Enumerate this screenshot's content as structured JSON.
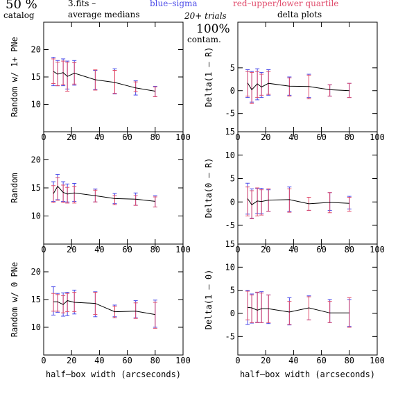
{
  "header": {
    "percent": "50 %",
    "catalog": "catalog",
    "fits": "3.fits  –",
    "average_medians": "average medians",
    "blue_sigma": "blue–sigma",
    "red_quartile": "red–upper/lower quartile",
    "trials": "20+ trials",
    "delta_plots": "delta plots",
    "contam_pct": "100%",
    "contam": "contam."
  },
  "colors": {
    "sigma": "#4a4ae8",
    "quartile": "#e04a6a",
    "median": "#000000"
  },
  "chart_data": [
    {
      "type": "line",
      "title": "",
      "xlabel": "",
      "ylabel": "Random w/ 1+ PNe",
      "xlim": [
        0,
        100
      ],
      "ylim": [
        5,
        25
      ],
      "xticks": [
        0,
        20,
        40,
        60,
        80,
        100
      ],
      "yticks": [
        10,
        15,
        20
      ],
      "x": [
        7,
        10,
        14,
        17,
        22,
        37,
        51,
        66,
        80
      ],
      "y": [
        16.0,
        15.5,
        15.8,
        15.1,
        15.7,
        14.5,
        14.0,
        13.0,
        12.4
      ],
      "sigma_low": [
        13.4,
        13.4,
        13.4,
        12.8,
        13.5,
        12.7,
        11.9,
        11.7,
        11.4
      ],
      "sigma_high": [
        18.6,
        18.0,
        18.3,
        17.9,
        18.0,
        16.2,
        16.5,
        14.3,
        13.3
      ],
      "quart_low": [
        13.8,
        13.4,
        13.6,
        12.4,
        13.7,
        12.6,
        12.0,
        12.3,
        11.4
      ],
      "quart_high": [
        18.3,
        17.7,
        17.9,
        17.7,
        17.6,
        16.3,
        16.2,
        14.1,
        13.2
      ]
    },
    {
      "type": "line",
      "title": "",
      "xlabel": "",
      "ylabel": "Delta(1 – R)",
      "xlim": [
        0,
        100
      ],
      "ylim": [
        -9,
        15
      ],
      "xticks": [
        0,
        20,
        40,
        60,
        80,
        100
      ],
      "yticks": [
        -5,
        0,
        5
      ],
      "x": [
        7,
        10,
        14,
        17,
        22,
        37,
        51,
        66,
        80
      ],
      "y": [
        1.7,
        0.2,
        1.5,
        0.8,
        1.6,
        1.0,
        0.9,
        0.2,
        0.0
      ],
      "sigma_low": [
        -1.5,
        -2.5,
        -2.0,
        -1.5,
        -1.0,
        -1.0,
        -1.5,
        -1.2,
        -1.5
      ],
      "sigma_high": [
        4.6,
        4.2,
        4.8,
        4.0,
        4.6,
        3.0,
        3.6,
        1.3,
        1.6
      ],
      "quart_low": [
        -1.2,
        -2.8,
        -1.5,
        -1.0,
        -0.8,
        -1.2,
        -1.8,
        -1.2,
        -1.5
      ],
      "quart_high": [
        4.2,
        4.0,
        4.2,
        3.6,
        4.2,
        2.8,
        3.4,
        1.3,
        1.6
      ]
    },
    {
      "type": "line",
      "title": "",
      "xlabel": "",
      "ylabel": "Random",
      "xlim": [
        0,
        100
      ],
      "ylim": [
        5,
        25
      ],
      "xticks": [
        0,
        20,
        40,
        60,
        80,
        100
      ],
      "yticks": [
        10,
        15,
        20
      ],
      "x": [
        7,
        10,
        14,
        17,
        22,
        37,
        51,
        66,
        80
      ],
      "y": [
        14.0,
        15.3,
        14.2,
        13.9,
        14.1,
        13.6,
        13.1,
        13.0,
        12.6
      ],
      "sigma_low": [
        12.6,
        12.9,
        12.6,
        12.5,
        12.6,
        12.5,
        12.2,
        11.9,
        11.6
      ],
      "sigma_high": [
        16.1,
        17.4,
        16.1,
        15.7,
        15.8,
        14.8,
        14.0,
        14.1,
        13.6
      ],
      "quart_low": [
        12.4,
        12.8,
        12.4,
        12.3,
        12.3,
        12.5,
        12.0,
        11.9,
        11.6
      ],
      "quart_high": [
        15.4,
        16.8,
        15.5,
        15.1,
        15.3,
        14.6,
        13.6,
        13.6,
        13.4
      ]
    },
    {
      "type": "line",
      "title": "",
      "xlabel": "",
      "ylabel": "Delta(0 – R)",
      "xlim": [
        0,
        100
      ],
      "ylim": [
        -9,
        15
      ],
      "xticks": [
        0,
        20,
        40,
        60,
        80,
        100
      ],
      "yticks": [
        -5,
        0,
        5,
        10,
        15
      ],
      "x": [
        7,
        10,
        14,
        17,
        22,
        37,
        51,
        66,
        80
      ],
      "y": [
        0.7,
        -0.6,
        0.2,
        0.1,
        0.4,
        0.5,
        -0.4,
        -0.1,
        -0.3
      ],
      "sigma_low": [
        -2.6,
        -3.5,
        -2.5,
        -2.5,
        -2.0,
        -2.0,
        -1.8,
        -1.8,
        -1.5
      ],
      "sigma_high": [
        4.0,
        2.8,
        2.9,
        2.9,
        2.6,
        3.2,
        1.0,
        2.0,
        1.2
      ],
      "quart_low": [
        -3.0,
        -3.6,
        -3.0,
        -2.8,
        -2.0,
        -2.2,
        -1.8,
        -2.3,
        -2.0
      ],
      "quart_high": [
        3.2,
        2.4,
        3.0,
        2.6,
        2.8,
        2.8,
        1.0,
        2.0,
        1.0
      ]
    },
    {
      "type": "line",
      "title": "",
      "xlabel": "half–box width (arcseconds)",
      "ylabel": "Random w/ 0 PNe",
      "xlim": [
        0,
        100
      ],
      "ylim": [
        5,
        25
      ],
      "xticks": [
        0,
        20,
        40,
        60,
        80,
        100
      ],
      "yticks": [
        10,
        15,
        20
      ],
      "x": [
        7,
        10,
        14,
        17,
        22,
        37,
        51,
        66,
        80
      ],
      "y": [
        14.6,
        14.6,
        14.1,
        14.8,
        14.5,
        14.3,
        12.8,
        12.9,
        12.3
      ],
      "sigma_low": [
        12.2,
        12.7,
        12.0,
        12.1,
        12.4,
        11.9,
        11.9,
        11.7,
        10.0
      ],
      "sigma_high": [
        17.3,
        16.1,
        16.2,
        16.3,
        16.7,
        16.4,
        14.0,
        14.8,
        14.9
      ],
      "quart_low": [
        12.9,
        12.9,
        12.6,
        12.8,
        12.8,
        12.3,
        11.7,
        11.6,
        9.8
      ],
      "quart_high": [
        16.1,
        15.9,
        15.7,
        16.1,
        16.3,
        16.3,
        13.8,
        14.4,
        14.5
      ]
    },
    {
      "type": "line",
      "title": "",
      "xlabel": "half–box width (arcseconds)",
      "ylabel": "Delta(1 – 0)",
      "xlim": [
        0,
        100
      ],
      "ylim": [
        -9,
        15
      ],
      "xticks": [
        0,
        20,
        40,
        60,
        80,
        100
      ],
      "yticks": [
        -5,
        0,
        5,
        10,
        15
      ],
      "x": [
        7,
        10,
        14,
        17,
        22,
        37,
        51,
        66,
        80
      ],
      "y": [
        1.3,
        1.2,
        0.7,
        1.0,
        1.0,
        0.3,
        1.2,
        0.1,
        0.1
      ],
      "sigma_low": [
        -2.4,
        -2.1,
        -1.9,
        -2.0,
        -2.2,
        -2.5,
        -1.4,
        -2.0,
        -2.8
      ],
      "sigma_high": [
        5.0,
        4.2,
        4.5,
        4.7,
        4.0,
        3.4,
        3.8,
        3.0,
        3.0
      ],
      "quart_low": [
        -1.4,
        -2.0,
        -2.0,
        -2.0,
        -2.0,
        -2.4,
        -1.4,
        -2.0,
        -3.0
      ],
      "quart_high": [
        4.8,
        4.0,
        4.6,
        4.4,
        4.0,
        2.6,
        3.6,
        2.6,
        3.4
      ]
    }
  ]
}
